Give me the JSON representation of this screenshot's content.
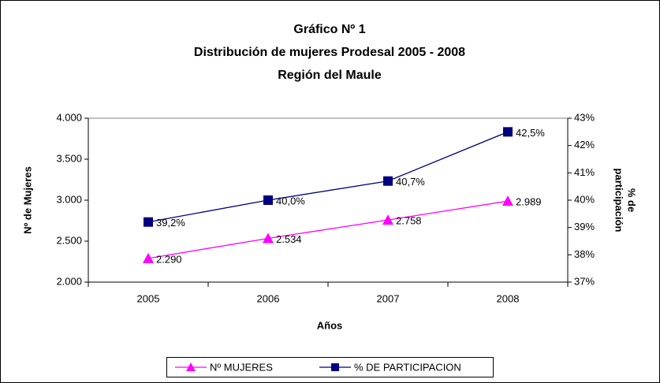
{
  "chart_data": {
    "type": "line",
    "title": [
      "Gráfico Nº 1",
      "Distribución de mujeres Prodesal 2005 - 2008",
      "Región del Maule"
    ],
    "xlabel": "Años",
    "ylabel": "Nº de Mujeres",
    "y2label": [
      "% de",
      "participación"
    ],
    "categories": [
      "2005",
      "2006",
      "2007",
      "2008"
    ],
    "series": [
      {
        "name": "Nº MUJERES",
        "color": "#ff00ff",
        "marker": "triangle",
        "axis": "y",
        "values": [
          2290,
          2534,
          2758,
          2989
        ],
        "value_labels": [
          "2.290",
          "2.534",
          "2.758",
          "2.989"
        ]
      },
      {
        "name": "% DE PARTICIPACION",
        "color": "#000080",
        "marker": "square",
        "axis": "y2",
        "values": [
          39.2,
          40.0,
          40.7,
          42.5
        ],
        "value_labels": [
          "39,2%",
          "40,0%",
          "40,7%",
          "42,5%"
        ]
      }
    ],
    "ylim": [
      2000,
      4000
    ],
    "yticks": [
      {
        "value": 2000,
        "label": "2.000"
      },
      {
        "value": 2500,
        "label": "2.500"
      },
      {
        "value": 3000,
        "label": "3.000"
      },
      {
        "value": 3500,
        "label": "3.500"
      },
      {
        "value": 4000,
        "label": "4.000"
      }
    ],
    "y2lim": [
      37,
      43
    ],
    "y2ticks": [
      {
        "value": 37,
        "label": "37%"
      },
      {
        "value": 38,
        "label": "38%"
      },
      {
        "value": 39,
        "label": "39%"
      },
      {
        "value": 40,
        "label": "40%"
      },
      {
        "value": 41,
        "label": "41%"
      },
      {
        "value": 42,
        "label": "42%"
      },
      {
        "value": 43,
        "label": "43%"
      }
    ],
    "grid": false,
    "legend": "bottom"
  }
}
